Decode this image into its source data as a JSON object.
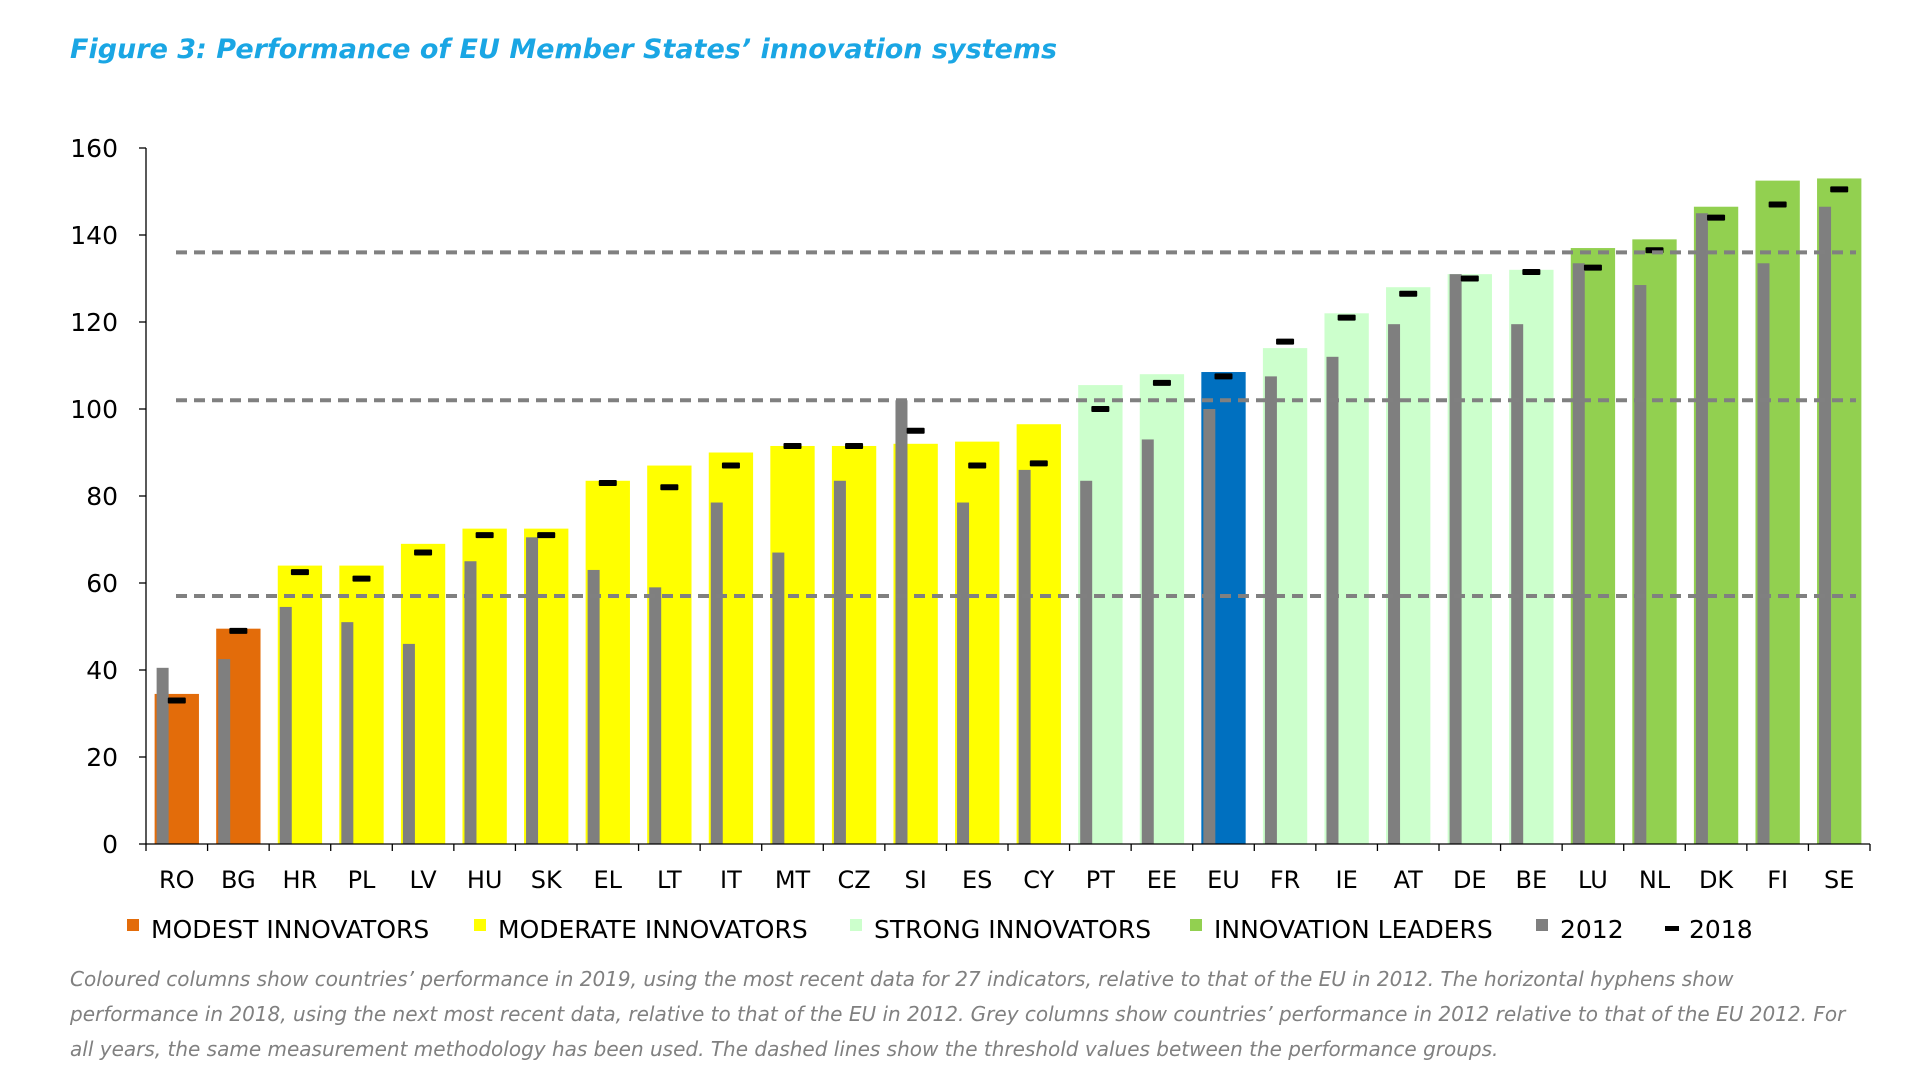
{
  "title": "Figure 3: Performance of EU Member States’ innovation systems",
  "caption": "Coloured columns show countries’ performance in 2019, using the most recent data for 27 indicators, relative to that of the EU in 2012. The horizontal hyphens show performance in 2018, using the next most recent data, relative to that of the EU in 2012. Grey columns show countries’ performance in 2012 relative to that of the EU 2012. For all years, the same measurement methodology has been used. The dashed lines show the threshold values between the performance groups.",
  "colors": {
    "modest": "#e36c0a",
    "moderate": "#ffff00",
    "strong": "#ccffcc",
    "leaders": "#92d050",
    "eu": "#0070c0",
    "grey2012": "#7f7f7f",
    "marker2018": "#000000",
    "threshold": "#808080"
  },
  "chart_data": {
    "type": "bar",
    "title": "Figure 3: Performance of EU Member States’ innovation systems",
    "xlabel": "",
    "ylabel": "",
    "ylim": [
      0,
      160
    ],
    "yticks": [
      "0",
      "20",
      "40",
      "60",
      "80",
      "100",
      "120",
      "140",
      "160"
    ],
    "categories": [
      "RO",
      "BG",
      "HR",
      "PL",
      "LV",
      "HU",
      "SK",
      "EL",
      "LT",
      "IT",
      "MT",
      "CZ",
      "SI",
      "ES",
      "CY",
      "PT",
      "EE",
      "EU",
      "FR",
      "IE",
      "AT",
      "DE",
      "BE",
      "LU",
      "NL",
      "DK",
      "FI",
      "SE"
    ],
    "groups": [
      "modest",
      "modest",
      "moderate",
      "moderate",
      "moderate",
      "moderate",
      "moderate",
      "moderate",
      "moderate",
      "moderate",
      "moderate",
      "moderate",
      "moderate",
      "moderate",
      "moderate",
      "strong",
      "strong",
      "eu",
      "strong",
      "strong",
      "strong",
      "strong",
      "strong",
      "leaders",
      "leaders",
      "leaders",
      "leaders",
      "leaders"
    ],
    "series": [
      {
        "name": "2019",
        "values": [
          34.5,
          49.5,
          64,
          64,
          69,
          72.5,
          72.5,
          83.5,
          87,
          90,
          91.5,
          91.5,
          92,
          92.5,
          96.5,
          105.5,
          108,
          108.5,
          114,
          122,
          128,
          131,
          132,
          137,
          139,
          146.5,
          152.5,
          153
        ]
      },
      {
        "name": "2012",
        "values": [
          40.5,
          42.5,
          54.5,
          51,
          46,
          65,
          70.5,
          63,
          59,
          78.5,
          67,
          83.5,
          102,
          78.5,
          86,
          83.5,
          93,
          100,
          107.5,
          112,
          119.5,
          131,
          119.5,
          133.5,
          128.5,
          145,
          133.5,
          146.5
        ]
      },
      {
        "name": "2018",
        "values": [
          33,
          49,
          62.5,
          61,
          67,
          71,
          71,
          83,
          82,
          87,
          91.5,
          91.5,
          95,
          87,
          87.5,
          100,
          106,
          107.5,
          115.5,
          121,
          126.5,
          130,
          131.5,
          132.5,
          136.5,
          144,
          147,
          150.5
        ]
      }
    ],
    "thresholds": [
      57,
      102,
      136
    ],
    "legend": [
      {
        "label": "MODEST INNOVATORS",
        "color_key": "modest",
        "shape": "square"
      },
      {
        "label": "MODERATE INNOVATORS",
        "color_key": "moderate",
        "shape": "square"
      },
      {
        "label": "STRONG INNOVATORS",
        "color_key": "strong",
        "shape": "square"
      },
      {
        "label": "INNOVATION LEADERS",
        "color_key": "leaders",
        "shape": "square"
      },
      {
        "label": "2012",
        "color_key": "grey2012",
        "shape": "square"
      },
      {
        "label": "2018",
        "color_key": "marker2018",
        "shape": "dash"
      }
    ],
    "legend_position": "bottom"
  }
}
